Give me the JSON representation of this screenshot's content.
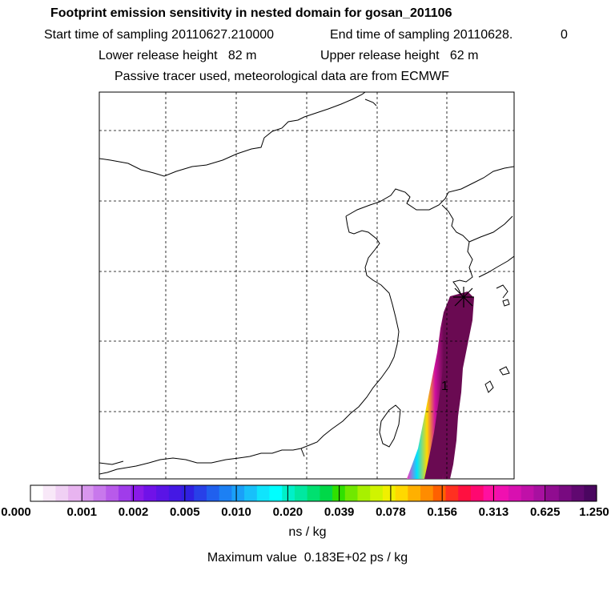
{
  "header": {
    "title": "Footprint emission sensitivity in nested domain for gosan_201106",
    "start_label": "Start time of sampling 20110627.210000",
    "end_label": "End time of sampling 20110628.",
    "end_suffix": "0",
    "lower_label": "Lower release height   82 m",
    "upper_label": "Upper release height   62 m",
    "tracer_note": "Passive tracer used, meteorological data are from ECMWF"
  },
  "map": {
    "region": "East Asia (Korea / eastern China / Taiwan / Japan)",
    "release_marker_label": "1",
    "plume_color": "#6a0a52"
  },
  "colorbar": {
    "ticks": [
      "0.000",
      "0.001",
      "0.002",
      "0.005",
      "0.010",
      "0.020",
      "0.039",
      "0.078",
      "0.156",
      "0.313",
      "0.625",
      "1.250"
    ],
    "colors": [
      "#ffffff",
      "#f8e8f8",
      "#f0d0f4",
      "#e8b4f0",
      "#d896ee",
      "#c878ec",
      "#b85aea",
      "#a03cea",
      "#8a1ae8",
      "#7012e8",
      "#5a14e6",
      "#4418e4",
      "#3020e2",
      "#2840e8",
      "#2060ee",
      "#1c80f4",
      "#1aa0f8",
      "#18c0fa",
      "#10e4fc",
      "#00ffff",
      "#00f0c8",
      "#00e8a0",
      "#00e070",
      "#00d848",
      "#30e000",
      "#70e800",
      "#a8f000",
      "#d0f400",
      "#f0f000",
      "#ffd800",
      "#ffb000",
      "#ff8c00",
      "#ff6000",
      "#ff3020",
      "#ff1040",
      "#ff0870",
      "#ff10a0",
      "#f010b0",
      "#d810b0",
      "#c010a8",
      "#a810a0",
      "#900c90",
      "#780a80",
      "#600870",
      "#4a0660"
    ],
    "units": "ns / kg",
    "max_value_text": "Maximum value  0.183E+02 ps / kg"
  }
}
